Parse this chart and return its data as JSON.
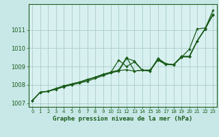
{
  "title": "Graphe pression niveau de la mer (hPa)",
  "bg_color": "#c8e8e8",
  "plot_bg_color": "#d8f0f0",
  "grid_color": "#b0d0d0",
  "line_color": "#1a5c1a",
  "spine_color": "#1a5c1a",
  "xlim": [
    -0.5,
    23.5
  ],
  "ylim": [
    1006.8,
    1012.4
  ],
  "yticks": [
    1007,
    1008,
    1009,
    1010,
    1011
  ],
  "xticks": [
    0,
    1,
    2,
    3,
    4,
    5,
    6,
    7,
    8,
    9,
    10,
    11,
    12,
    13,
    14,
    15,
    16,
    17,
    18,
    19,
    20,
    21,
    22,
    23
  ],
  "series": [
    [
      1007.15,
      1007.6,
      1007.65,
      1007.75,
      1007.9,
      1008.0,
      1008.1,
      1008.2,
      1008.35,
      1008.5,
      1008.65,
      1008.75,
      1009.45,
      1009.3,
      1008.8,
      1008.8,
      1009.35,
      1009.1,
      1009.1,
      1009.5,
      1009.95,
      1011.05,
      1011.1,
      1011.8
    ],
    [
      1007.15,
      1007.6,
      1007.65,
      1007.8,
      1007.95,
      1008.05,
      1008.15,
      1008.3,
      1008.4,
      1008.55,
      1008.7,
      1008.8,
      1009.5,
      1008.75,
      1008.8,
      1008.75,
      1009.45,
      1009.15,
      1009.1,
      1009.55,
      1009.55,
      1010.4,
      1011.05,
      1012.05
    ],
    [
      1007.15,
      1007.6,
      1007.65,
      1007.8,
      1007.9,
      1008.05,
      1008.15,
      1008.28,
      1008.42,
      1008.58,
      1008.68,
      1009.35,
      1009.0,
      1009.25,
      1008.8,
      1008.8,
      1009.4,
      1009.15,
      1009.1,
      1009.55,
      1009.55,
      1010.4,
      1011.05,
      1011.85
    ],
    [
      1007.15,
      1007.6,
      1007.65,
      1007.8,
      1007.9,
      1008.0,
      1008.12,
      1008.28,
      1008.42,
      1008.55,
      1008.68,
      1008.78,
      1008.82,
      1008.75,
      1008.8,
      1008.75,
      1009.38,
      1009.12,
      1009.08,
      1009.52,
      1009.52,
      1010.38,
      1011.02,
      1011.82
    ]
  ]
}
